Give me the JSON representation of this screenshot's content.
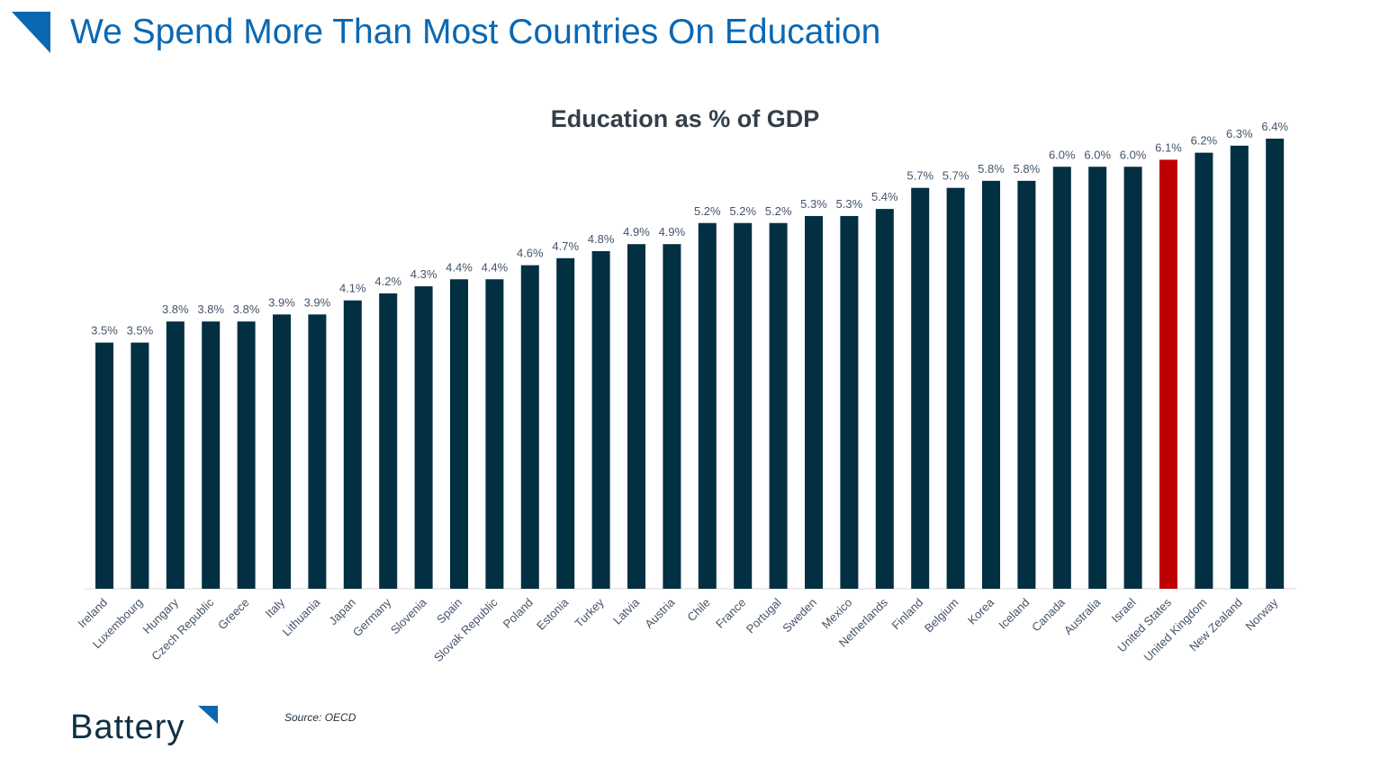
{
  "page": {
    "title": "We Spend More Than Most Countries On Education",
    "source": "Source: OECD",
    "brand": "Battery"
  },
  "colors": {
    "title": "#0a68b3",
    "bar": "#032f43",
    "highlight": "#c00000",
    "label": "#44546a",
    "chart_title": "#333f4a",
    "axis": "#d9d9d9"
  },
  "chart_data": {
    "type": "bar",
    "title": "Education as % of GDP",
    "xlabel": "",
    "ylabel": "",
    "ylim": [
      0,
      6.4
    ],
    "grid": false,
    "legend": "none",
    "highlight_category": "United States",
    "categories": [
      "Ireland",
      "Luxembourg",
      "Hungary",
      "Czech Republic",
      "Greece",
      "Italy",
      "Lithuania",
      "Japan",
      "Germany",
      "Slovenia",
      "Spain",
      "Slovak Republic",
      "Poland",
      "Estonia",
      "Turkey",
      "Latvia",
      "Austria",
      "Chile",
      "France",
      "Portugal",
      "Sweden",
      "Mexico",
      "Netherlands",
      "Finland",
      "Belgium",
      "Korea",
      "Iceland",
      "Canada",
      "Australia",
      "Israel",
      "United States",
      "United Kingdom",
      "New Zealand",
      "Norway"
    ],
    "values": [
      3.5,
      3.5,
      3.8,
      3.8,
      3.8,
      3.9,
      3.9,
      4.1,
      4.2,
      4.3,
      4.4,
      4.4,
      4.6,
      4.7,
      4.8,
      4.9,
      4.9,
      5.2,
      5.2,
      5.2,
      5.3,
      5.3,
      5.4,
      5.7,
      5.7,
      5.8,
      5.8,
      6.0,
      6.0,
      6.0,
      6.1,
      6.2,
      6.3,
      6.4
    ],
    "data_labels": [
      "3.5%",
      "3.5%",
      "3.8%",
      "3.8%",
      "3.8%",
      "3.9%",
      "3.9%",
      "4.1%",
      "4.2%",
      "4.3%",
      "4.4%",
      "4.4%",
      "4.6%",
      "4.7%",
      "4.8%",
      "4.9%",
      "4.9%",
      "5.2%",
      "5.2%",
      "5.2%",
      "5.3%",
      "5.3%",
      "5.4%",
      "5.7%",
      "5.7%",
      "5.8%",
      "5.8%",
      "6.0%",
      "6.0%",
      "6.0%",
      "6.1%",
      "6.2%",
      "6.3%",
      "6.4%"
    ]
  }
}
